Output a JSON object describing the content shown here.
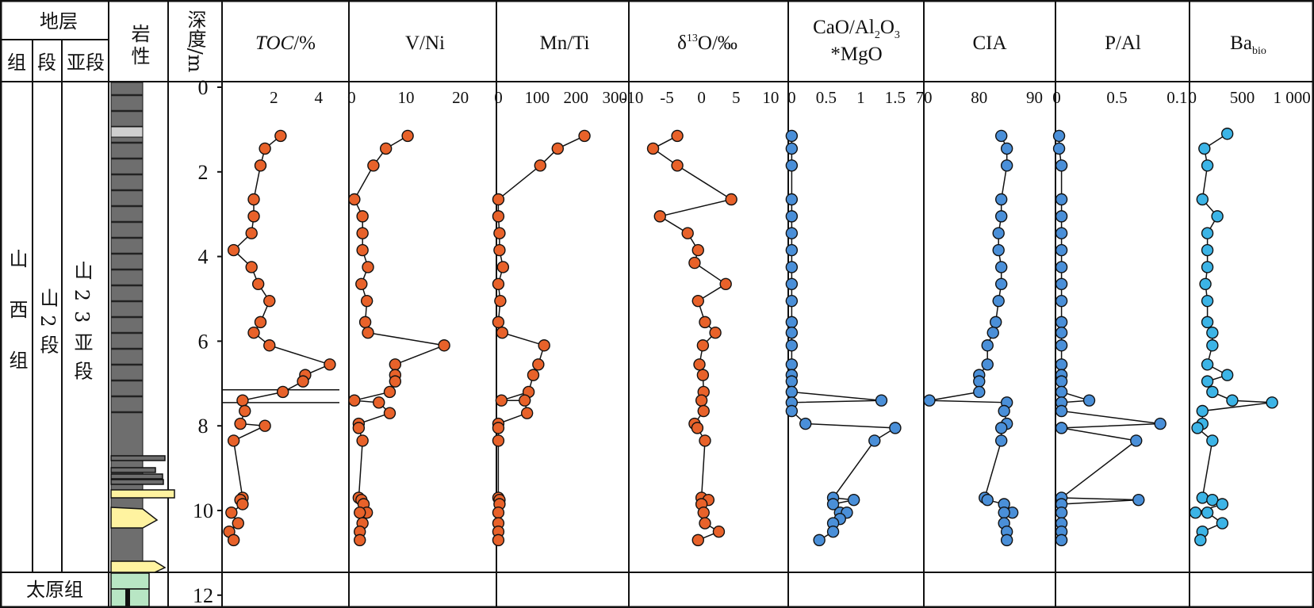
{
  "strat": {
    "h_strata": "地层",
    "h_formation": "组",
    "h_member": "段",
    "h_submember": "亚段",
    "h_lithology": "岩性",
    "h_depth": "深度/m",
    "formation": "山西组",
    "member": "山2段",
    "submember": "山23亚段",
    "taiyuan": "太原组",
    "depth_ticks": [
      "0",
      "2",
      "4",
      "6",
      "8",
      "10",
      "12"
    ]
  },
  "colors": {
    "orange": "#e8622a",
    "blue": "#4a8fd8",
    "lightblue": "#3cb4e6",
    "sandstone": "#fff3a0",
    "limestone": "#b8e6c4",
    "shale": "#6e6e6e"
  },
  "chart_data": [
    {
      "type": "line",
      "title": "TOC/%",
      "xticks": [
        "2",
        "4"
      ],
      "xlim": [
        0,
        5
      ],
      "ylim": [
        0,
        12
      ],
      "y_reversed": true,
      "series": [
        {
          "values": [
            [
              2.3,
              1.15
            ],
            [
              1.6,
              1.45
            ],
            [
              1.4,
              1.85
            ],
            [
              1.1,
              2.65
            ],
            [
              1.1,
              3.05
            ],
            [
              1.0,
              3.45
            ],
            [
              0.2,
              3.85
            ],
            [
              1.0,
              4.25
            ],
            [
              1.3,
              4.65
            ],
            [
              1.8,
              5.05
            ],
            [
              1.4,
              5.55
            ],
            [
              1.1,
              5.8
            ],
            [
              1.8,
              6.1
            ],
            [
              4.5,
              6.55
            ],
            [
              3.4,
              6.8
            ],
            [
              3.3,
              6.95
            ],
            [
              2.4,
              7.2
            ],
            [
              0.6,
              7.4
            ],
            [
              0.7,
              7.65
            ],
            [
              0.5,
              7.95
            ],
            [
              1.6,
              8.0
            ],
            [
              0.2,
              8.35
            ],
            [
              0.6,
              9.7
            ],
            [
              0.5,
              9.75
            ],
            [
              0.6,
              9.85
            ],
            [
              0.1,
              10.05
            ],
            [
              0.4,
              10.3
            ],
            [
              0.0,
              10.5
            ],
            [
              0.2,
              10.7
            ]
          ]
        }
      ]
    },
    {
      "type": "line",
      "title": "V/Ni",
      "xticks": [
        "0",
        "10",
        "20"
      ],
      "xlim": [
        -0.5,
        25
      ],
      "ylim": [
        0,
        12
      ],
      "y_reversed": true,
      "series": [
        {
          "values": [
            [
              10.3,
              1.15
            ],
            [
              6.3,
              1.45
            ],
            [
              4.0,
              1.85
            ],
            [
              0.5,
              2.65
            ],
            [
              2.0,
              3.05
            ],
            [
              2.0,
              3.45
            ],
            [
              2.0,
              3.85
            ],
            [
              3.0,
              4.25
            ],
            [
              1.8,
              4.65
            ],
            [
              2.8,
              5.05
            ],
            [
              2.5,
              5.55
            ],
            [
              3.0,
              5.8
            ],
            [
              17.0,
              6.1
            ],
            [
              8.0,
              6.55
            ],
            [
              8.0,
              6.8
            ],
            [
              8.0,
              6.95
            ],
            [
              7.0,
              7.2
            ],
            [
              0.5,
              7.4
            ],
            [
              5.0,
              7.45
            ],
            [
              7.0,
              7.7
            ],
            [
              1.3,
              7.95
            ],
            [
              1.3,
              8.05
            ],
            [
              2.0,
              8.35
            ],
            [
              1.3,
              9.7
            ],
            [
              1.8,
              9.75
            ],
            [
              2.2,
              9.85
            ],
            [
              2.8,
              10.05
            ],
            [
              1.5,
              10.05
            ],
            [
              2.0,
              10.3
            ],
            [
              1.5,
              10.5
            ],
            [
              1.5,
              10.7
            ]
          ]
        }
      ]
    },
    {
      "type": "line",
      "title": "Mn/Ti",
      "xticks": [
        "0",
        "100",
        "200",
        "300"
      ],
      "xlim": [
        -5,
        320
      ],
      "ylim": [
        0,
        12
      ],
      "y_reversed": true,
      "series": [
        {
          "values": [
            [
              222,
              1.15
            ],
            [
              153,
              1.45
            ],
            [
              108,
              1.85
            ],
            [
              0,
              2.65
            ],
            [
              0,
              3.05
            ],
            [
              3,
              3.45
            ],
            [
              3,
              3.85
            ],
            [
              12,
              4.25
            ],
            [
              0,
              4.65
            ],
            [
              5,
              5.05
            ],
            [
              0,
              5.55
            ],
            [
              10,
              5.8
            ],
            [
              118,
              6.1
            ],
            [
              103,
              6.55
            ],
            [
              90,
              6.8
            ],
            [
              78,
              7.2
            ],
            [
              8,
              7.4
            ],
            [
              68,
              7.4
            ],
            [
              74,
              7.7
            ],
            [
              0,
              7.95
            ],
            [
              0,
              8.05
            ],
            [
              0,
              8.35
            ],
            [
              0,
              9.7
            ],
            [
              3,
              9.75
            ],
            [
              3,
              9.85
            ],
            [
              0,
              10.05
            ],
            [
              0,
              10.3
            ],
            [
              0,
              10.5
            ],
            [
              0,
              10.7
            ]
          ]
        }
      ]
    },
    {
      "type": "line",
      "title": "δ13O/‰",
      "xticks": [
        "-10",
        "-5",
        "0",
        "5",
        "10"
      ],
      "xlim": [
        -10.5,
        11.5
      ],
      "ylim": [
        0,
        12
      ],
      "y_reversed": true,
      "series": [
        {
          "values": [
            [
              -3.5,
              1.15
            ],
            [
              -7.0,
              1.45
            ],
            [
              -3.5,
              1.85
            ],
            [
              4.3,
              2.65
            ],
            [
              -6.0,
              3.05
            ],
            [
              -2.0,
              3.45
            ],
            [
              -0.5,
              3.85
            ],
            [
              -1.0,
              4.15
            ],
            [
              3.5,
              4.65
            ],
            [
              -0.5,
              5.05
            ],
            [
              0.5,
              5.55
            ],
            [
              2.0,
              5.8
            ],
            [
              0.2,
              6.1
            ],
            [
              -0.3,
              6.55
            ],
            [
              0.2,
              6.8
            ],
            [
              0.3,
              7.2
            ],
            [
              0.0,
              7.4
            ],
            [
              0.3,
              7.65
            ],
            [
              -1.0,
              7.95
            ],
            [
              -0.6,
              8.05
            ],
            [
              0.5,
              8.35
            ],
            [
              0.0,
              9.7
            ],
            [
              1.0,
              9.75
            ],
            [
              0.0,
              9.85
            ],
            [
              0.3,
              10.05
            ],
            [
              0.5,
              10.3
            ],
            [
              2.5,
              10.5
            ],
            [
              -0.5,
              10.7
            ]
          ]
        }
      ]
    },
    {
      "type": "line",
      "title": "CaO/Al2O3*MgO",
      "xticks": [
        "0",
        "0.5",
        "1",
        "1.5"
      ],
      "xlim": [
        -0.05,
        1.8
      ],
      "ylim": [
        0,
        12
      ],
      "y_reversed": true,
      "series": [
        {
          "values": [
            [
              0,
              1.15
            ],
            [
              0,
              1.45
            ],
            [
              0,
              1.85
            ],
            [
              0,
              2.65
            ],
            [
              0,
              3.05
            ],
            [
              0,
              3.45
            ],
            [
              0,
              3.85
            ],
            [
              0,
              4.25
            ],
            [
              0,
              4.65
            ],
            [
              0,
              5.05
            ],
            [
              0,
              5.55
            ],
            [
              0,
              5.8
            ],
            [
              0,
              6.1
            ],
            [
              0,
              6.55
            ],
            [
              0,
              6.8
            ],
            [
              0,
              6.95
            ],
            [
              0,
              7.2
            ],
            [
              1.3,
              7.4
            ],
            [
              0,
              7.45
            ],
            [
              0,
              7.65
            ],
            [
              0.2,
              7.95
            ],
            [
              1.5,
              8.05
            ],
            [
              1.2,
              8.35
            ],
            [
              0.6,
              9.7
            ],
            [
              0.9,
              9.75
            ],
            [
              0.6,
              9.85
            ],
            [
              0.7,
              10.05
            ],
            [
              0.8,
              10.05
            ],
            [
              0.7,
              10.2
            ],
            [
              0.6,
              10.3
            ],
            [
              0.6,
              10.5
            ],
            [
              0.4,
              10.7
            ]
          ]
        }
      ]
    },
    {
      "type": "line",
      "title": "CIA",
      "xticks": [
        "70",
        "80",
        "90"
      ],
      "xlim": [
        70,
        92.5
      ],
      "ylim": [
        0,
        12
      ],
      "y_reversed": true,
      "series": [
        {
          "values": [
            [
              84,
              1.15
            ],
            [
              85,
              1.45
            ],
            [
              85,
              1.85
            ],
            [
              84,
              2.65
            ],
            [
              84,
              3.05
            ],
            [
              83.5,
              3.45
            ],
            [
              83.5,
              3.85
            ],
            [
              84,
              4.25
            ],
            [
              84,
              4.65
            ],
            [
              83.5,
              5.05
            ],
            [
              83,
              5.55
            ],
            [
              82.5,
              5.8
            ],
            [
              81.5,
              6.1
            ],
            [
              81.5,
              6.55
            ],
            [
              80,
              6.8
            ],
            [
              80,
              6.95
            ],
            [
              80,
              7.2
            ],
            [
              71,
              7.4
            ],
            [
              85,
              7.45
            ],
            [
              84.5,
              7.65
            ],
            [
              85,
              7.95
            ],
            [
              84,
              8.05
            ],
            [
              84,
              8.35
            ],
            [
              81,
              9.7
            ],
            [
              81.5,
              9.75
            ],
            [
              84.5,
              9.85
            ],
            [
              86,
              10.05
            ],
            [
              84.5,
              10.05
            ],
            [
              84.5,
              10.3
            ],
            [
              85,
              10.5
            ],
            [
              85,
              10.7
            ]
          ]
        }
      ]
    },
    {
      "type": "line",
      "title": "P/Al",
      "xticks": [
        "0",
        "0.5",
        "0.1"
      ],
      "xlim": [
        -0.01,
        1.05
      ],
      "ylim": [
        0,
        12
      ],
      "y_reversed": true,
      "series": [
        {
          "values": [
            [
              0.02,
              1.15
            ],
            [
              0.02,
              1.45
            ],
            [
              0.04,
              1.85
            ],
            [
              0.04,
              2.65
            ],
            [
              0.04,
              3.05
            ],
            [
              0.04,
              3.45
            ],
            [
              0.04,
              3.85
            ],
            [
              0.04,
              4.25
            ],
            [
              0.04,
              4.65
            ],
            [
              0.04,
              5.05
            ],
            [
              0.04,
              5.55
            ],
            [
              0.04,
              5.8
            ],
            [
              0.04,
              6.1
            ],
            [
              0.04,
              6.55
            ],
            [
              0.04,
              6.8
            ],
            [
              0.04,
              6.95
            ],
            [
              0.04,
              7.2
            ],
            [
              0.27,
              7.4
            ],
            [
              0.04,
              7.45
            ],
            [
              0.04,
              7.65
            ],
            [
              0.86,
              7.95
            ],
            [
              0.04,
              8.05
            ],
            [
              0.66,
              8.35
            ],
            [
              0.04,
              9.7
            ],
            [
              0.68,
              9.75
            ],
            [
              0.04,
              9.85
            ],
            [
              0.04,
              10.05
            ],
            [
              0.04,
              10.3
            ],
            [
              0.04,
              10.5
            ],
            [
              0.04,
              10.7
            ]
          ]
        }
      ]
    },
    {
      "type": "line",
      "title": "Babio",
      "xticks": [
        "0",
        "500",
        "1 000"
      ],
      "xlim": [
        -30,
        1150
      ],
      "ylim": [
        0,
        12
      ],
      "y_reversed": true,
      "series": [
        {
          "values": [
            [
              350,
              1.1
            ],
            [
              120,
              1.45
            ],
            [
              150,
              1.85
            ],
            [
              100,
              2.65
            ],
            [
              250,
              3.05
            ],
            [
              150,
              3.45
            ],
            [
              150,
              3.85
            ],
            [
              150,
              4.25
            ],
            [
              130,
              4.65
            ],
            [
              150,
              5.05
            ],
            [
              150,
              5.55
            ],
            [
              200,
              5.8
            ],
            [
              200,
              6.1
            ],
            [
              150,
              6.55
            ],
            [
              350,
              6.8
            ],
            [
              150,
              6.95
            ],
            [
              200,
              7.2
            ],
            [
              400,
              7.4
            ],
            [
              800,
              7.45
            ],
            [
              100,
              7.65
            ],
            [
              100,
              7.95
            ],
            [
              50,
              8.05
            ],
            [
              200,
              8.35
            ],
            [
              100,
              9.7
            ],
            [
              200,
              9.75
            ],
            [
              300,
              9.85
            ],
            [
              30,
              10.05
            ],
            [
              150,
              10.05
            ],
            [
              300,
              10.3
            ],
            [
              100,
              10.5
            ],
            [
              80,
              10.7
            ]
          ]
        }
      ]
    }
  ]
}
